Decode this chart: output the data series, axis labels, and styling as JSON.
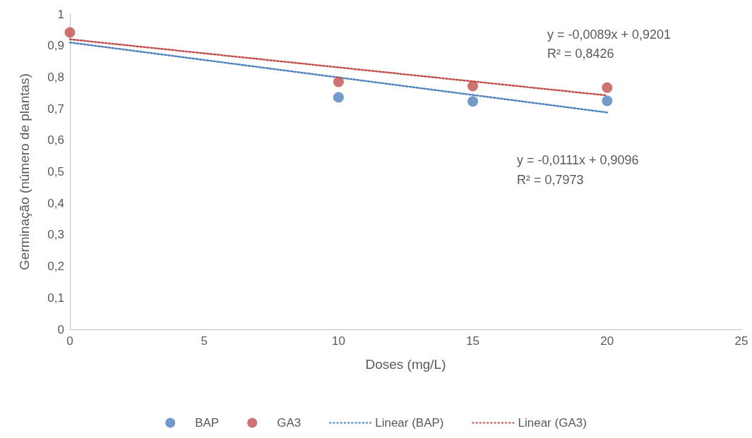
{
  "chart_data": {
    "type": "scatter",
    "xlabel": "Doses (mg/L)",
    "ylabel": "Germinação (número de plantas)",
    "xlim": [
      0,
      25
    ],
    "xticks": [
      0,
      5,
      10,
      15,
      20,
      25
    ],
    "ylim": [
      0,
      1
    ],
    "yticks": [
      0,
      {
        "value": 0.1,
        "label": "0,1"
      },
      {
        "value": 0.2,
        "label": "0,2"
      },
      {
        "value": 0.3,
        "label": "0,3"
      },
      {
        "value": 0.4,
        "label": "0,4"
      },
      {
        "value": 0.5,
        "label": "0,5"
      },
      {
        "value": 0.6,
        "label": "0,6"
      },
      {
        "value": 0.7,
        "label": "0,7"
      },
      {
        "value": 0.8,
        "label": "0,8"
      },
      {
        "value": 0.9,
        "label": "0,9"
      },
      1
    ],
    "grid": false,
    "legend": "bottom",
    "marker": "circle",
    "series": [
      {
        "name": "BAP",
        "color": "#4f81bd",
        "x": [
          10,
          15,
          20
        ],
        "values": [
          0.736,
          0.723,
          0.725
        ]
      },
      {
        "name": "GA3",
        "color": "#c0504d",
        "x": [
          0,
          10,
          15,
          20
        ],
        "values": [
          0.942,
          0.785,
          0.772,
          0.767
        ]
      },
      {
        "name": "Linear (BAP)",
        "type": "line",
        "color": "#4f81bd",
        "marker": "none",
        "line_style": "dotted",
        "x": [
          0,
          20
        ],
        "values": [
          0.91,
          0.688
        ]
      },
      {
        "name": "Linear (GA3)",
        "type": "line",
        "color": "#c0504d",
        "marker": "none",
        "line_style": "dotted",
        "x": [
          0,
          20
        ],
        "values": [
          0.92,
          0.742
        ]
      }
    ],
    "annotations": [
      "y = -0,0089x + 0,9201",
      "R² = 0,8426",
      "y = -0,0111x + 0,9096",
      "R² = 0,7973"
    ]
  }
}
